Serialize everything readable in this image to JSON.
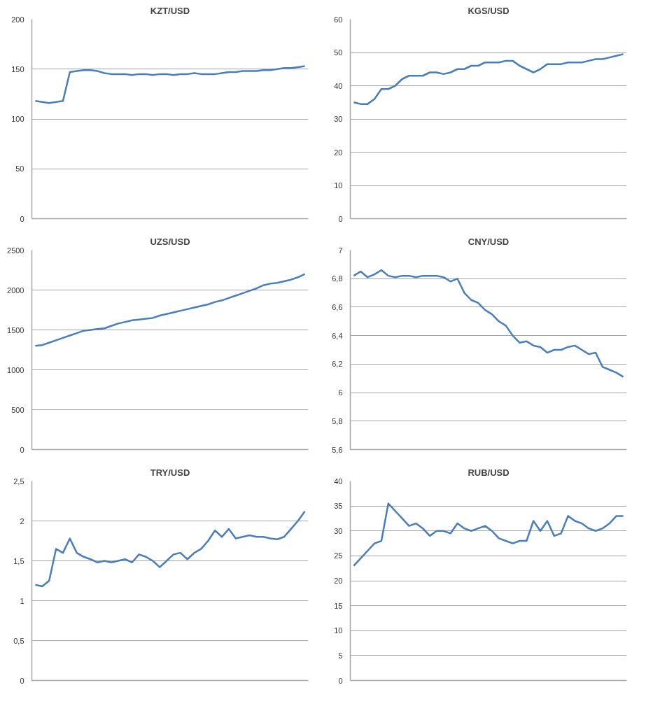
{
  "chart_data": [
    {
      "type": "line",
      "title": "KZT/USD",
      "color": "#4a7ebb",
      "grid": "y",
      "tick_labels": "y",
      "ylim": [
        0,
        200
      ],
      "yticks": [
        0,
        50,
        100,
        150,
        200
      ],
      "categories": [
        null,
        null,
        null,
        null,
        null,
        null,
        null,
        null,
        null,
        null,
        null,
        null,
        null,
        null,
        null,
        null,
        null,
        null,
        null,
        null,
        null,
        null,
        null,
        null,
        null,
        null,
        null,
        null,
        null,
        null,
        null,
        null,
        null,
        null,
        null,
        null,
        null,
        null,
        null,
        null
      ],
      "values": [
        118,
        117,
        116,
        117,
        118,
        147,
        148,
        149,
        149,
        148,
        146,
        145,
        145,
        145,
        144,
        145,
        145,
        144,
        145,
        145,
        144,
        145,
        145,
        146,
        145,
        145,
        145,
        146,
        147,
        147,
        148,
        148,
        148,
        149,
        149,
        150,
        151,
        151,
        152,
        153
      ]
    },
    {
      "type": "line",
      "title": "KGS/USD",
      "color": "#4a7ebb",
      "grid": "y",
      "tick_labels": "y",
      "ylim": [
        0,
        60
      ],
      "yticks": [
        0,
        10,
        20,
        30,
        40,
        50,
        60
      ],
      "categories": [
        null,
        null,
        null,
        null,
        null,
        null,
        null,
        null,
        null,
        null,
        null,
        null,
        null,
        null,
        null,
        null,
        null,
        null,
        null,
        null,
        null,
        null,
        null,
        null,
        null,
        null,
        null,
        null,
        null,
        null,
        null,
        null,
        null,
        null,
        null,
        null,
        null,
        null,
        null,
        null
      ],
      "values": [
        35,
        34.5,
        34.5,
        36,
        39,
        39,
        40,
        42,
        43,
        43,
        43,
        44,
        44,
        43.5,
        44,
        45,
        45,
        46,
        46,
        47,
        47,
        47,
        47.5,
        47.5,
        46,
        45,
        44,
        45,
        46.5,
        46.5,
        46.5,
        47,
        47,
        47,
        47.5,
        48,
        48,
        48.5,
        49,
        49.5
      ]
    },
    {
      "type": "line",
      "title": "UZS/USD",
      "color": "#4a7ebb",
      "grid": "y",
      "tick_labels": "y",
      "ylim": [
        0,
        2500
      ],
      "yticks": [
        0,
        500,
        1000,
        1500,
        2000,
        2500
      ],
      "categories": [
        null,
        null,
        null,
        null,
        null,
        null,
        null,
        null,
        null,
        null,
        null,
        null,
        null,
        null,
        null,
        null,
        null,
        null,
        null,
        null,
        null,
        null,
        null,
        null,
        null,
        null,
        null,
        null,
        null,
        null,
        null,
        null,
        null,
        null,
        null,
        null,
        null,
        null,
        null,
        null
      ],
      "values": [
        1300,
        1310,
        1340,
        1370,
        1400,
        1430,
        1460,
        1490,
        1500,
        1510,
        1520,
        1550,
        1580,
        1600,
        1620,
        1630,
        1640,
        1650,
        1680,
        1700,
        1720,
        1740,
        1760,
        1780,
        1800,
        1820,
        1850,
        1870,
        1900,
        1930,
        1960,
        1990,
        2020,
        2060,
        2080,
        2090,
        2110,
        2130,
        2160,
        2200
      ]
    },
    {
      "type": "line",
      "title": "CNY/USD",
      "color": "#4a7ebb",
      "grid": "y",
      "tick_labels": "y",
      "ylim": [
        5.6,
        7
      ],
      "yticks": [
        {
          "value": 5.6,
          "label": "5,6"
        },
        {
          "value": 5.8,
          "label": "5,8"
        },
        6,
        {
          "value": 6.2,
          "label": "6,2"
        },
        {
          "value": 6.4,
          "label": "6,4"
        },
        {
          "value": 6.6,
          "label": "6,6"
        },
        {
          "value": 6.8,
          "label": "6,8"
        },
        7
      ],
      "categories": [
        null,
        null,
        null,
        null,
        null,
        null,
        null,
        null,
        null,
        null,
        null,
        null,
        null,
        null,
        null,
        null,
        null,
        null,
        null,
        null,
        null,
        null,
        null,
        null,
        null,
        null,
        null,
        null,
        null,
        null,
        null,
        null,
        null,
        null,
        null,
        null,
        null,
        null,
        null,
        null
      ],
      "values": [
        6.82,
        6.85,
        6.81,
        6.83,
        6.86,
        6.82,
        6.81,
        6.82,
        6.82,
        6.81,
        6.82,
        6.82,
        6.82,
        6.81,
        6.78,
        6.8,
        6.7,
        6.65,
        6.63,
        6.58,
        6.55,
        6.5,
        6.47,
        6.4,
        6.35,
        6.36,
        6.33,
        6.32,
        6.28,
        6.3,
        6.3,
        6.32,
        6.33,
        6.3,
        6.27,
        6.28,
        6.18,
        6.16,
        6.14,
        6.11
      ]
    },
    {
      "type": "line",
      "title": "TRY/USD",
      "color": "#4a7ebb",
      "grid": "y",
      "tick_labels": "y",
      "ylim": [
        0,
        2.5
      ],
      "yticks": [
        0,
        {
          "value": 0.5,
          "label": "0,5"
        },
        1,
        {
          "value": 1.5,
          "label": "1,5"
        },
        2,
        {
          "value": 2.5,
          "label": "2,5"
        }
      ],
      "categories": [
        null,
        null,
        null,
        null,
        null,
        null,
        null,
        null,
        null,
        null,
        null,
        null,
        null,
        null,
        null,
        null,
        null,
        null,
        null,
        null,
        null,
        null,
        null,
        null,
        null,
        null,
        null,
        null,
        null,
        null,
        null,
        null,
        null,
        null,
        null,
        null,
        null,
        null,
        null,
        null
      ],
      "values": [
        1.2,
        1.18,
        1.25,
        1.65,
        1.6,
        1.78,
        1.6,
        1.55,
        1.52,
        1.48,
        1.5,
        1.48,
        1.5,
        1.52,
        1.48,
        1.58,
        1.55,
        1.5,
        1.42,
        1.5,
        1.58,
        1.6,
        1.52,
        1.6,
        1.65,
        1.75,
        1.88,
        1.8,
        1.9,
        1.78,
        1.8,
        1.82,
        1.8,
        1.8,
        1.78,
        1.77,
        1.8,
        1.9,
        2.0,
        2.12
      ]
    },
    {
      "type": "line",
      "title": "RUB/USD",
      "color": "#4a7ebb",
      "grid": "y",
      "tick_labels": "y",
      "ylim": [
        0,
        40
      ],
      "yticks": [
        0,
        5,
        10,
        15,
        20,
        25,
        30,
        35,
        40
      ],
      "categories": [
        null,
        null,
        null,
        null,
        null,
        null,
        null,
        null,
        null,
        null,
        null,
        null,
        null,
        null,
        null,
        null,
        null,
        null,
        null,
        null,
        null,
        null,
        null,
        null,
        null,
        null,
        null,
        null,
        null,
        null,
        null,
        null,
        null,
        null,
        null,
        null,
        null,
        null,
        null,
        null
      ],
      "values": [
        23,
        24.5,
        26,
        27.5,
        28,
        35.5,
        34,
        32.5,
        31,
        31.5,
        30.5,
        29,
        30,
        30,
        29.5,
        31.5,
        30.5,
        30,
        30.5,
        31,
        30,
        28.5,
        28,
        27.5,
        28,
        28,
        32,
        30,
        32,
        29,
        29.5,
        33,
        32,
        31.5,
        30.5,
        30,
        30.5,
        31.5,
        33,
        33
      ]
    }
  ]
}
